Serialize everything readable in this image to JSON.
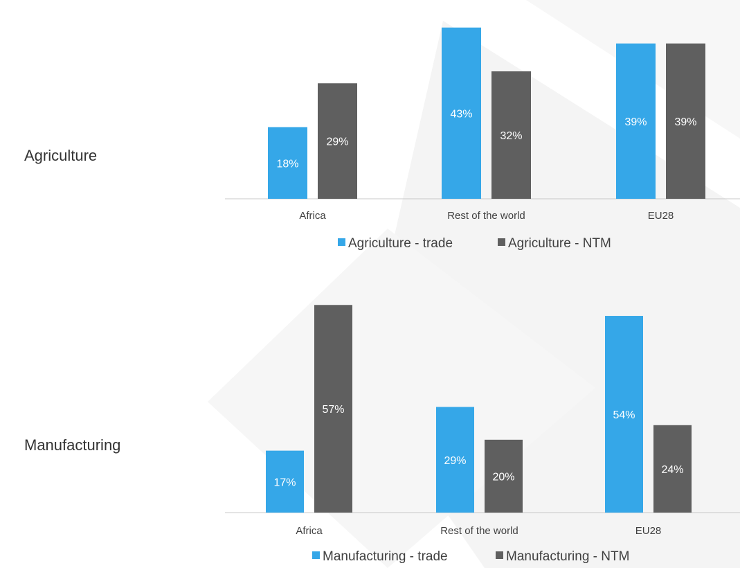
{
  "row_labels": {
    "top": "Agriculture",
    "bottom": "Manufacturing"
  },
  "colors": {
    "trade": "#35a7e8",
    "ntm": "#5f5f5f",
    "axis": "#c8c8c8"
  },
  "chart_data": [
    {
      "type": "bar",
      "categories": [
        "Africa",
        "Rest of the world",
        "EU28"
      ],
      "series": [
        {
          "name": "Agriculture - trade",
          "values": [
            18,
            43,
            39
          ],
          "labels": [
            "18%",
            "43%",
            "39%"
          ]
        },
        {
          "name": "Agriculture - NTM",
          "values": [
            29,
            32,
            39
          ],
          "labels": [
            "29%",
            "32%",
            "39%"
          ]
        }
      ],
      "value_unit": "%",
      "ylim": [
        0,
        44
      ],
      "grid": false,
      "legend": "bottom"
    },
    {
      "type": "bar",
      "categories": [
        "Africa",
        "Rest of the world",
        "EU28"
      ],
      "series": [
        {
          "name": "Manufacturing - trade",
          "values": [
            17,
            29,
            54
          ],
          "labels": [
            "17%",
            "29%",
            "54%"
          ]
        },
        {
          "name": "Manufacturing - NTM",
          "values": [
            57,
            20,
            24
          ],
          "labels": [
            "57%",
            "20%",
            "24%"
          ]
        }
      ],
      "value_unit": "%",
      "ylim": [
        0,
        58
      ],
      "grid": false,
      "legend": "bottom"
    }
  ]
}
